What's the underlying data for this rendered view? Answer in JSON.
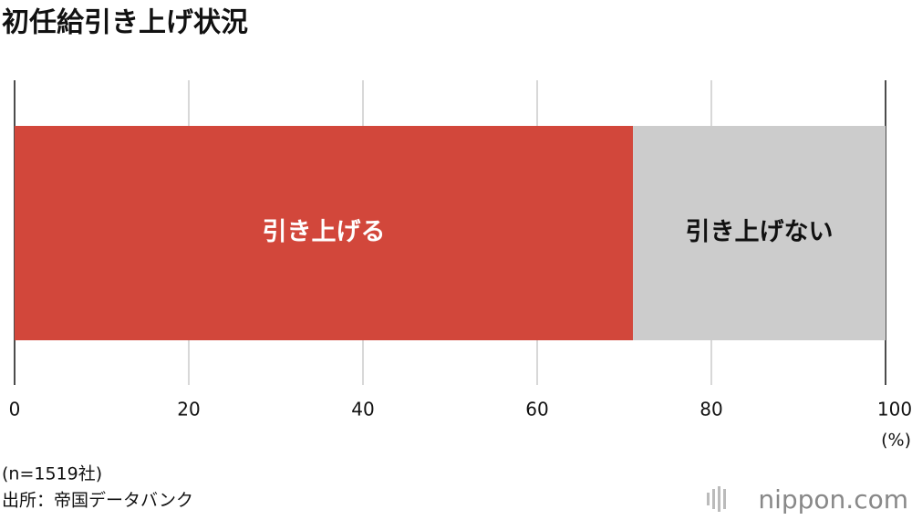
{
  "chart_data": {
    "type": "stacked_barh",
    "title": "初任給引き上げ状況",
    "categories": [
      null
    ],
    "series": [
      {
        "name": "引き上げる",
        "color": "#d2473b",
        "values": [
          71
        ]
      },
      {
        "name": "引き上げない",
        "color": "#cccccc",
        "values": [
          29
        ]
      }
    ],
    "xlim": [
      0,
      100
    ],
    "xticks": [
      0,
      20,
      40,
      60,
      80,
      100
    ],
    "xlabel": "(%)",
    "grid": true,
    "notes": [
      "(n=1519社)",
      "出所：帝国データバンク"
    ],
    "logo": "nippon.com"
  }
}
